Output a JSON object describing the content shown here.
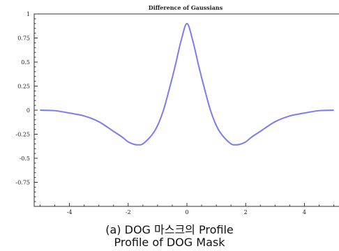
{
  "chart_data": {
    "type": "line",
    "title": "Difference of Gaussians",
    "xlabel": "",
    "ylabel": "",
    "xlim": [
      -5.2,
      5.2
    ],
    "ylim": [
      -1.0,
      1.0
    ],
    "x_ticks": [
      -4,
      -2,
      0,
      2,
      4
    ],
    "x_tick_labels": [
      "-4",
      "-2",
      "0",
      "2",
      "4"
    ],
    "y_ticks": [
      1,
      0.75,
      0.5,
      0.25,
      0,
      -0.25,
      -0.5,
      -0.75
    ],
    "y_tick_labels": [
      "1",
      "0.75",
      "0.5",
      "0.25",
      "0",
      "-0.25",
      "-0.5",
      "-0.75"
    ],
    "grid": false,
    "series": [
      {
        "color": "#7b7bf0",
        "x": [
          -5,
          -4.5,
          -4,
          -3.5,
          -3,
          -2.5,
          -2.2,
          -2,
          -1.8,
          -1.65,
          -1.5,
          -1.2,
          -1,
          -0.8,
          -0.6,
          -0.4,
          -0.2,
          0,
          0.2,
          0.4,
          0.6,
          0.8,
          1,
          1.2,
          1.5,
          1.65,
          1.8,
          2,
          2.2,
          2.5,
          3,
          3.5,
          4,
          4.5,
          5
        ],
        "y": [
          0.0,
          -0.005,
          -0.03,
          -0.06,
          -0.12,
          -0.22,
          -0.28,
          -0.33,
          -0.355,
          -0.36,
          -0.35,
          -0.26,
          -0.16,
          0.0,
          0.22,
          0.46,
          0.72,
          0.9,
          0.72,
          0.46,
          0.22,
          0.0,
          -0.16,
          -0.26,
          -0.35,
          -0.36,
          -0.355,
          -0.33,
          -0.28,
          -0.22,
          -0.12,
          -0.06,
          -0.03,
          -0.005,
          0.0
        ]
      }
    ]
  },
  "caption": {
    "line1": "(a) DOG 마스크의 Profile",
    "line2": "Profile of DOG Mask"
  }
}
